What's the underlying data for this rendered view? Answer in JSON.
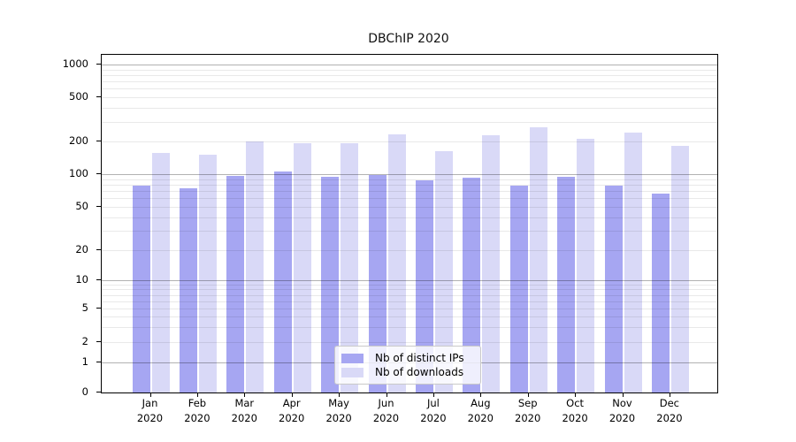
{
  "chart_data": {
    "type": "bar",
    "title": "DBChIP 2020",
    "x_year": "2020",
    "categories": [
      "Jan",
      "Feb",
      "Mar",
      "Apr",
      "May",
      "Jun",
      "Jul",
      "Aug",
      "Sep",
      "Oct",
      "Nov",
      "Dec"
    ],
    "series": [
      {
        "name": "Nb of distinct IPs",
        "color": "#a6a6f2",
        "values": [
          78,
          74,
          96,
          105,
          94,
          98,
          87,
          93,
          79,
          94,
          78,
          66
        ]
      },
      {
        "name": "Nb of downloads",
        "color": "#d9d9f7",
        "values": [
          155,
          150,
          200,
          190,
          190,
          228,
          162,
          224,
          265,
          210,
          237,
          181
        ]
      }
    ],
    "y_axis": {
      "scale": "log-like",
      "tick_values": [
        0,
        1,
        2,
        5,
        10,
        20,
        50,
        100,
        200,
        500,
        1000
      ],
      "major_gridlines": [
        1,
        10,
        100,
        1000
      ],
      "minor_gridlines": [
        2,
        3,
        4,
        5,
        6,
        7,
        8,
        9,
        20,
        30,
        40,
        50,
        60,
        70,
        80,
        90,
        200,
        300,
        400,
        500,
        600,
        700,
        800,
        900
      ]
    },
    "legend": {
      "position": "inside-bottom-center",
      "entries": [
        "Nb of distinct IPs",
        "Nb of downloads"
      ]
    },
    "colors": {
      "minor_grid": "#e8e8e8",
      "major_grid": "#b3b3b3",
      "spine": "#000000",
      "background": "#ffffff"
    }
  }
}
